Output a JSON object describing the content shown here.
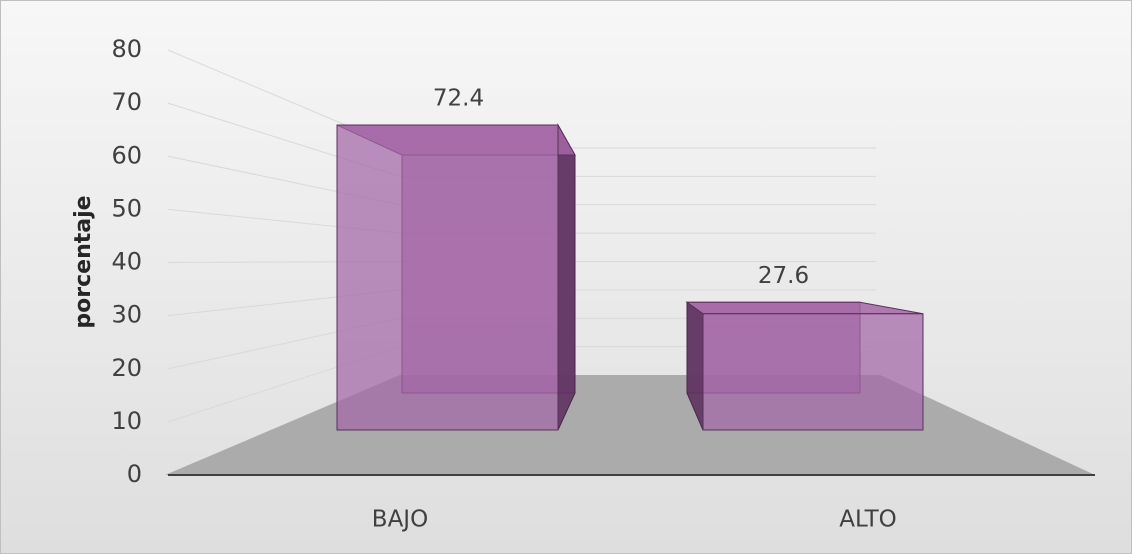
{
  "chart_data": {
    "type": "bar",
    "ylabel": "porcentaje",
    "categories": [
      "BAJO",
      "ALTO"
    ],
    "values": [
      72.4,
      27.6
    ],
    "color": "#a466a6",
    "ylim": [
      0,
      80
    ],
    "yticks": [
      0,
      10,
      20,
      30,
      40,
      50,
      60,
      70,
      80
    ],
    "grid": true
  }
}
